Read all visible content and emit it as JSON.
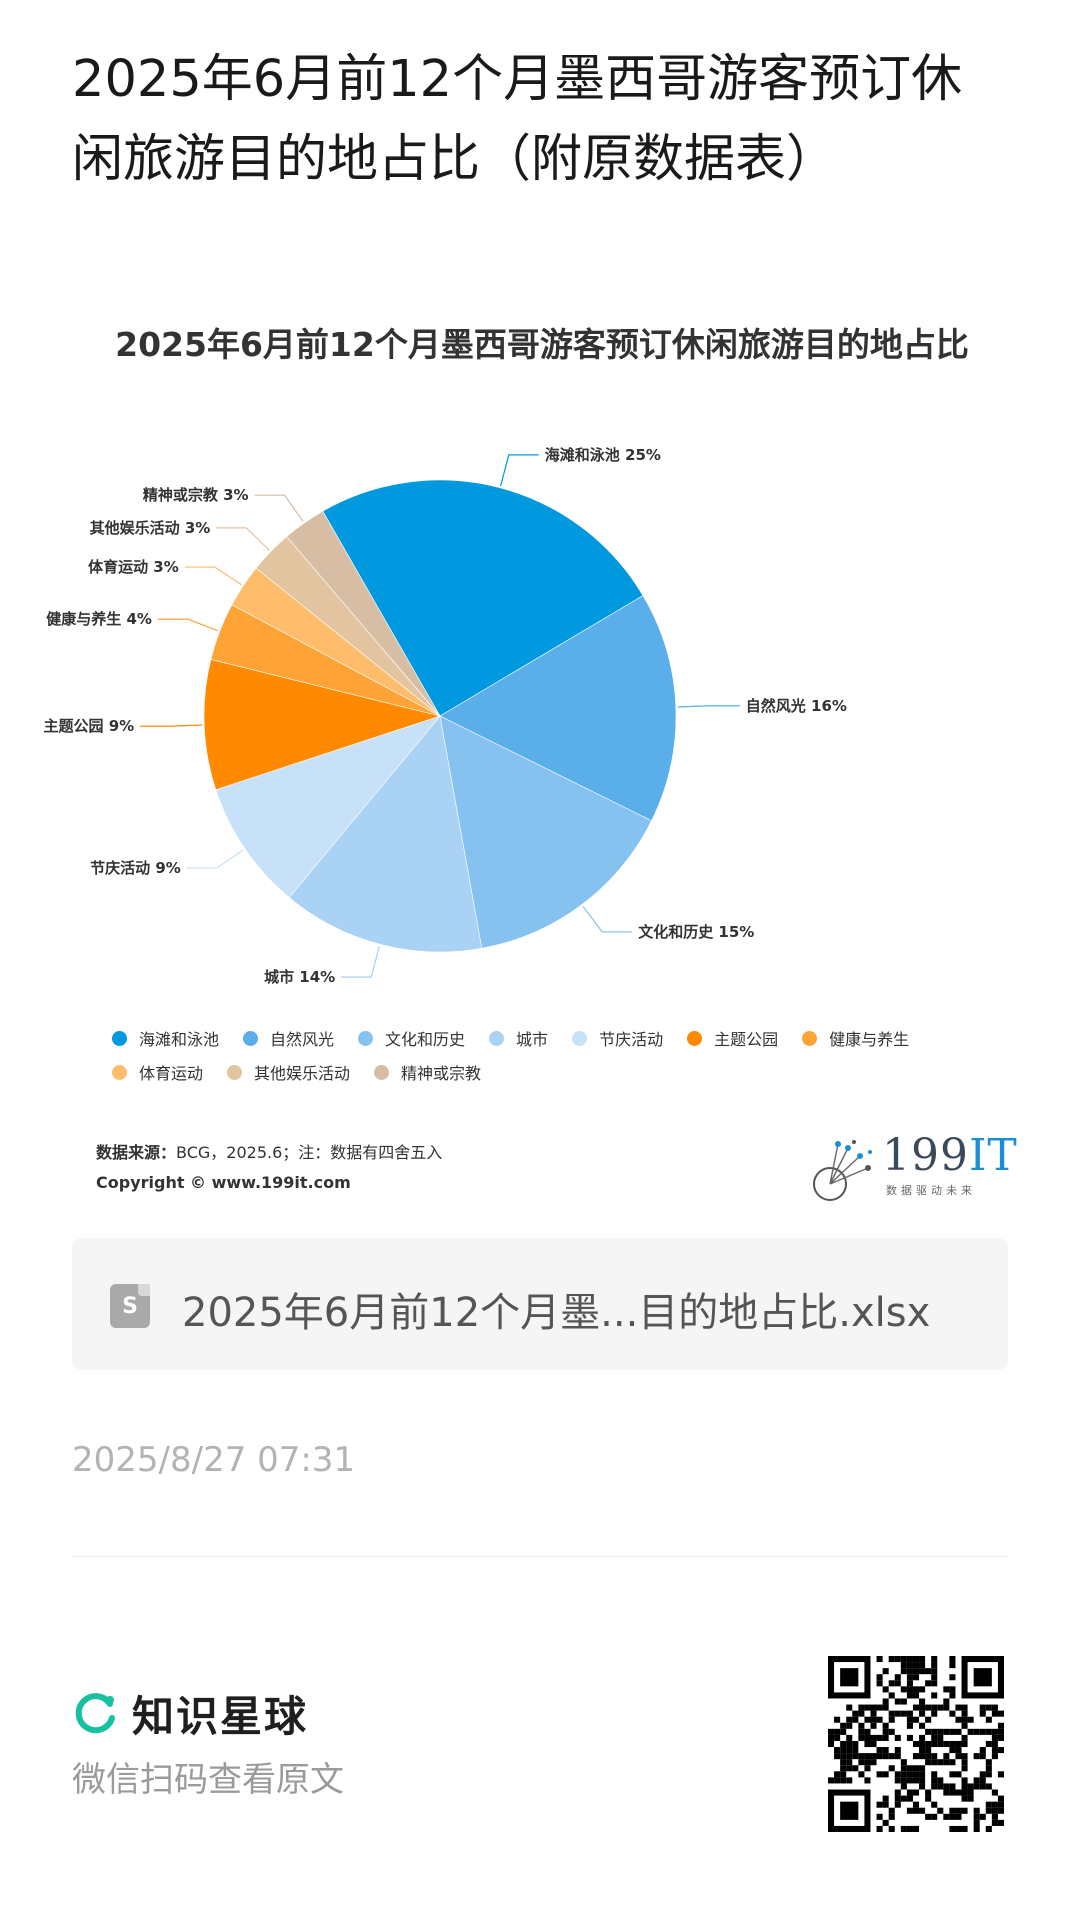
{
  "post": {
    "title": "2025年6月前12个月墨西哥游客预订休闲旅游目的地占比（附原数据表）",
    "file_name": "2025年6月前12个月墨...目的地占比.xlsx",
    "file_icon_letter": "S",
    "timestamp": "2025/8/27 07:31"
  },
  "chart_data": {
    "type": "pie",
    "title": "2025年6月前12个月墨西哥游客预订休闲旅游目的地占比",
    "categories": [
      "海滩和泳池",
      "自然风光",
      "文化和历史",
      "城市",
      "节庆活动",
      "主题公园",
      "健康与养生",
      "体育运动",
      "其他娱乐活动",
      "精神或宗教"
    ],
    "values": [
      25,
      16,
      15,
      14,
      9,
      9,
      4,
      3,
      3,
      3
    ],
    "unit": "%",
    "colors": [
      "#0099e0",
      "#5aaeea",
      "#85c2f0",
      "#a9d2f5",
      "#c6e1f8",
      "#ff8a00",
      "#ffa337",
      "#ffbd6b",
      "#e2c4a1",
      "#d6bda3"
    ],
    "slice_labels": [
      "海滩和泳池 25%",
      "自然风光 16%",
      "文化和历史 15%",
      "城市 14%",
      "节庆活动 9%",
      "主题公园 9%",
      "健康与养生 4%",
      "体育运动 3%",
      "其他娱乐活动 3%",
      "精神或宗教 3%"
    ],
    "legend_position": "bottom"
  },
  "source": {
    "label": "数据来源：",
    "text": "BCG，2025.6；注：数据有四舍五入",
    "copyright": "Copyright © www.199it.com"
  },
  "brand": {
    "name_num": "199",
    "name_it": "IT",
    "tagline": "数据驱动未来"
  },
  "footer": {
    "app_name": "知识星球",
    "scan_text": "微信扫码查看原文"
  }
}
